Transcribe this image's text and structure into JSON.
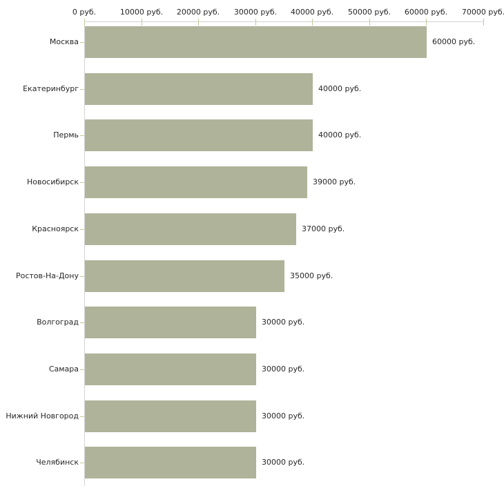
{
  "chart_data": {
    "type": "bar",
    "orientation": "horizontal",
    "title": "",
    "xlabel": "",
    "ylabel": "",
    "unit": "руб.",
    "categories": [
      "Москва",
      "Екатеринбург",
      "Пермь",
      "Новосибирск",
      "Красноярск",
      "Ростов-На-Дону",
      "Волгоград",
      "Самара",
      "Нижний Новгород",
      "Челябинск"
    ],
    "values": [
      60000,
      40000,
      40000,
      39000,
      37000,
      35000,
      30000,
      30000,
      30000,
      30000
    ],
    "value_labels": [
      "60000 руб.",
      "40000 руб.",
      "40000 руб.",
      "39000 руб.",
      "37000 руб.",
      "35000 руб.",
      "30000 руб.",
      "30000 руб.",
      "30000 руб.",
      "30000 руб."
    ],
    "x_ticks": [
      0,
      10000,
      20000,
      30000,
      40000,
      50000,
      60000,
      70000
    ],
    "x_tick_labels": [
      "0 руб.",
      "10000 руб.",
      "20000 руб.",
      "30000 руб.",
      "40000 руб.",
      "50000 руб.",
      "60000 руб.",
      "70000 руб."
    ],
    "xlim": [
      0,
      70000
    ],
    "axis_position": "top",
    "grid": false,
    "legend": false,
    "colors": {
      "bar": "#afb399",
      "axis_line": "#d3d3d3",
      "tick": "#c6c69c",
      "text": "#262626",
      "background": "#ffffff"
    }
  }
}
